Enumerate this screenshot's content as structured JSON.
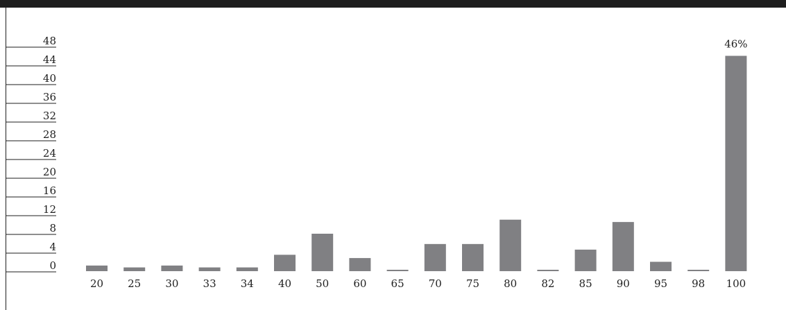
{
  "chart_data": {
    "type": "bar",
    "categories": [
      "20",
      "25",
      "30",
      "33",
      "34",
      "40",
      "50",
      "60",
      "65",
      "70",
      "75",
      "80",
      "82",
      "85",
      "90",
      "95",
      "98",
      "100"
    ],
    "values": [
      1.2,
      0.8,
      1.2,
      0.8,
      0.8,
      3.5,
      8.0,
      2.8,
      0.3,
      5.8,
      5.8,
      11.0,
      0.3,
      4.6,
      10.5,
      2.0,
      0.3,
      46
    ],
    "yticks": [
      0,
      4,
      8,
      12,
      16,
      20,
      24,
      28,
      32,
      36,
      40,
      44,
      48
    ],
    "ylim": [
      0,
      48
    ],
    "data_labels": [
      {
        "category": "100",
        "text": "46%"
      }
    ],
    "bar_color": "#808083",
    "grid": false
  }
}
